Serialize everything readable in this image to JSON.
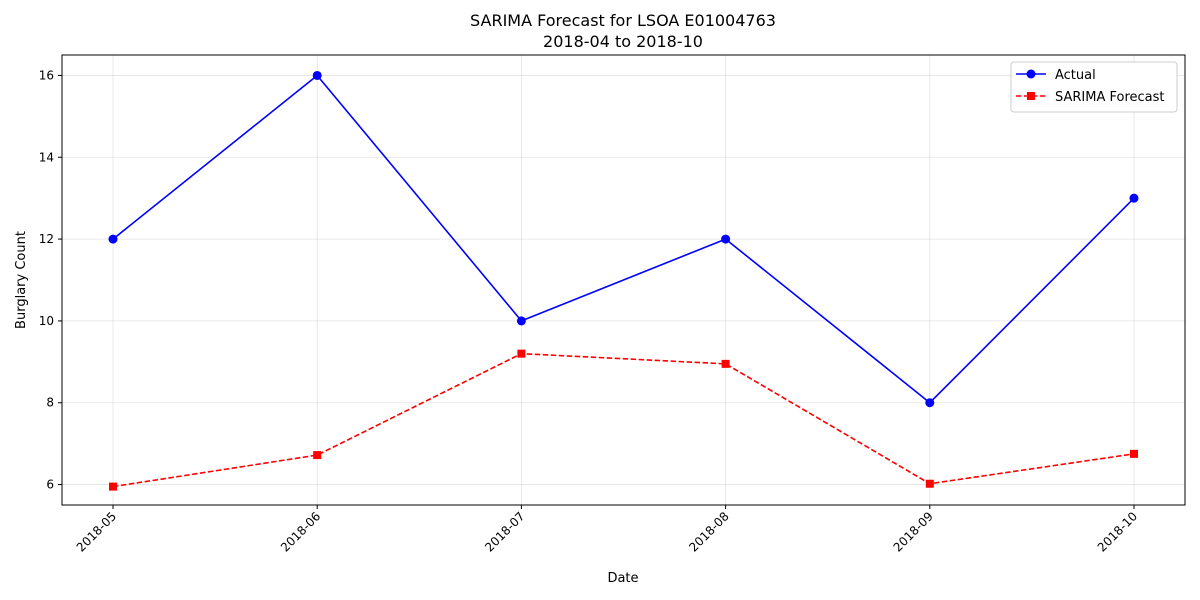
{
  "chart_data": {
    "type": "line",
    "title": "SARIMA Forecast for LSOA E01004763",
    "subtitle": "2018-04 to 2018-10",
    "xlabel": "Date",
    "ylabel": "Burglary Count",
    "x": [
      "2018-05",
      "2018-06",
      "2018-07",
      "2018-08",
      "2018-09",
      "2018-10"
    ],
    "x_ticks": [
      "2018-05",
      "2018-06",
      "2018-07",
      "2018-08",
      "2018-09",
      "2018-10"
    ],
    "y_ticks": [
      6,
      8,
      10,
      12,
      14,
      16
    ],
    "ylim": [
      5.5,
      16.5
    ],
    "grid": true,
    "legend_position": "top-right",
    "series": [
      {
        "name": "Actual",
        "values": [
          12,
          16,
          10,
          12,
          8,
          13
        ],
        "color": "#0000ff",
        "line_style": "solid",
        "marker": "circle"
      },
      {
        "name": "SARIMA Forecast",
        "values": [
          5.95,
          6.72,
          9.2,
          8.95,
          6.02,
          6.75
        ],
        "color": "#ff0000",
        "line_style": "dashed",
        "marker": "square"
      }
    ]
  }
}
